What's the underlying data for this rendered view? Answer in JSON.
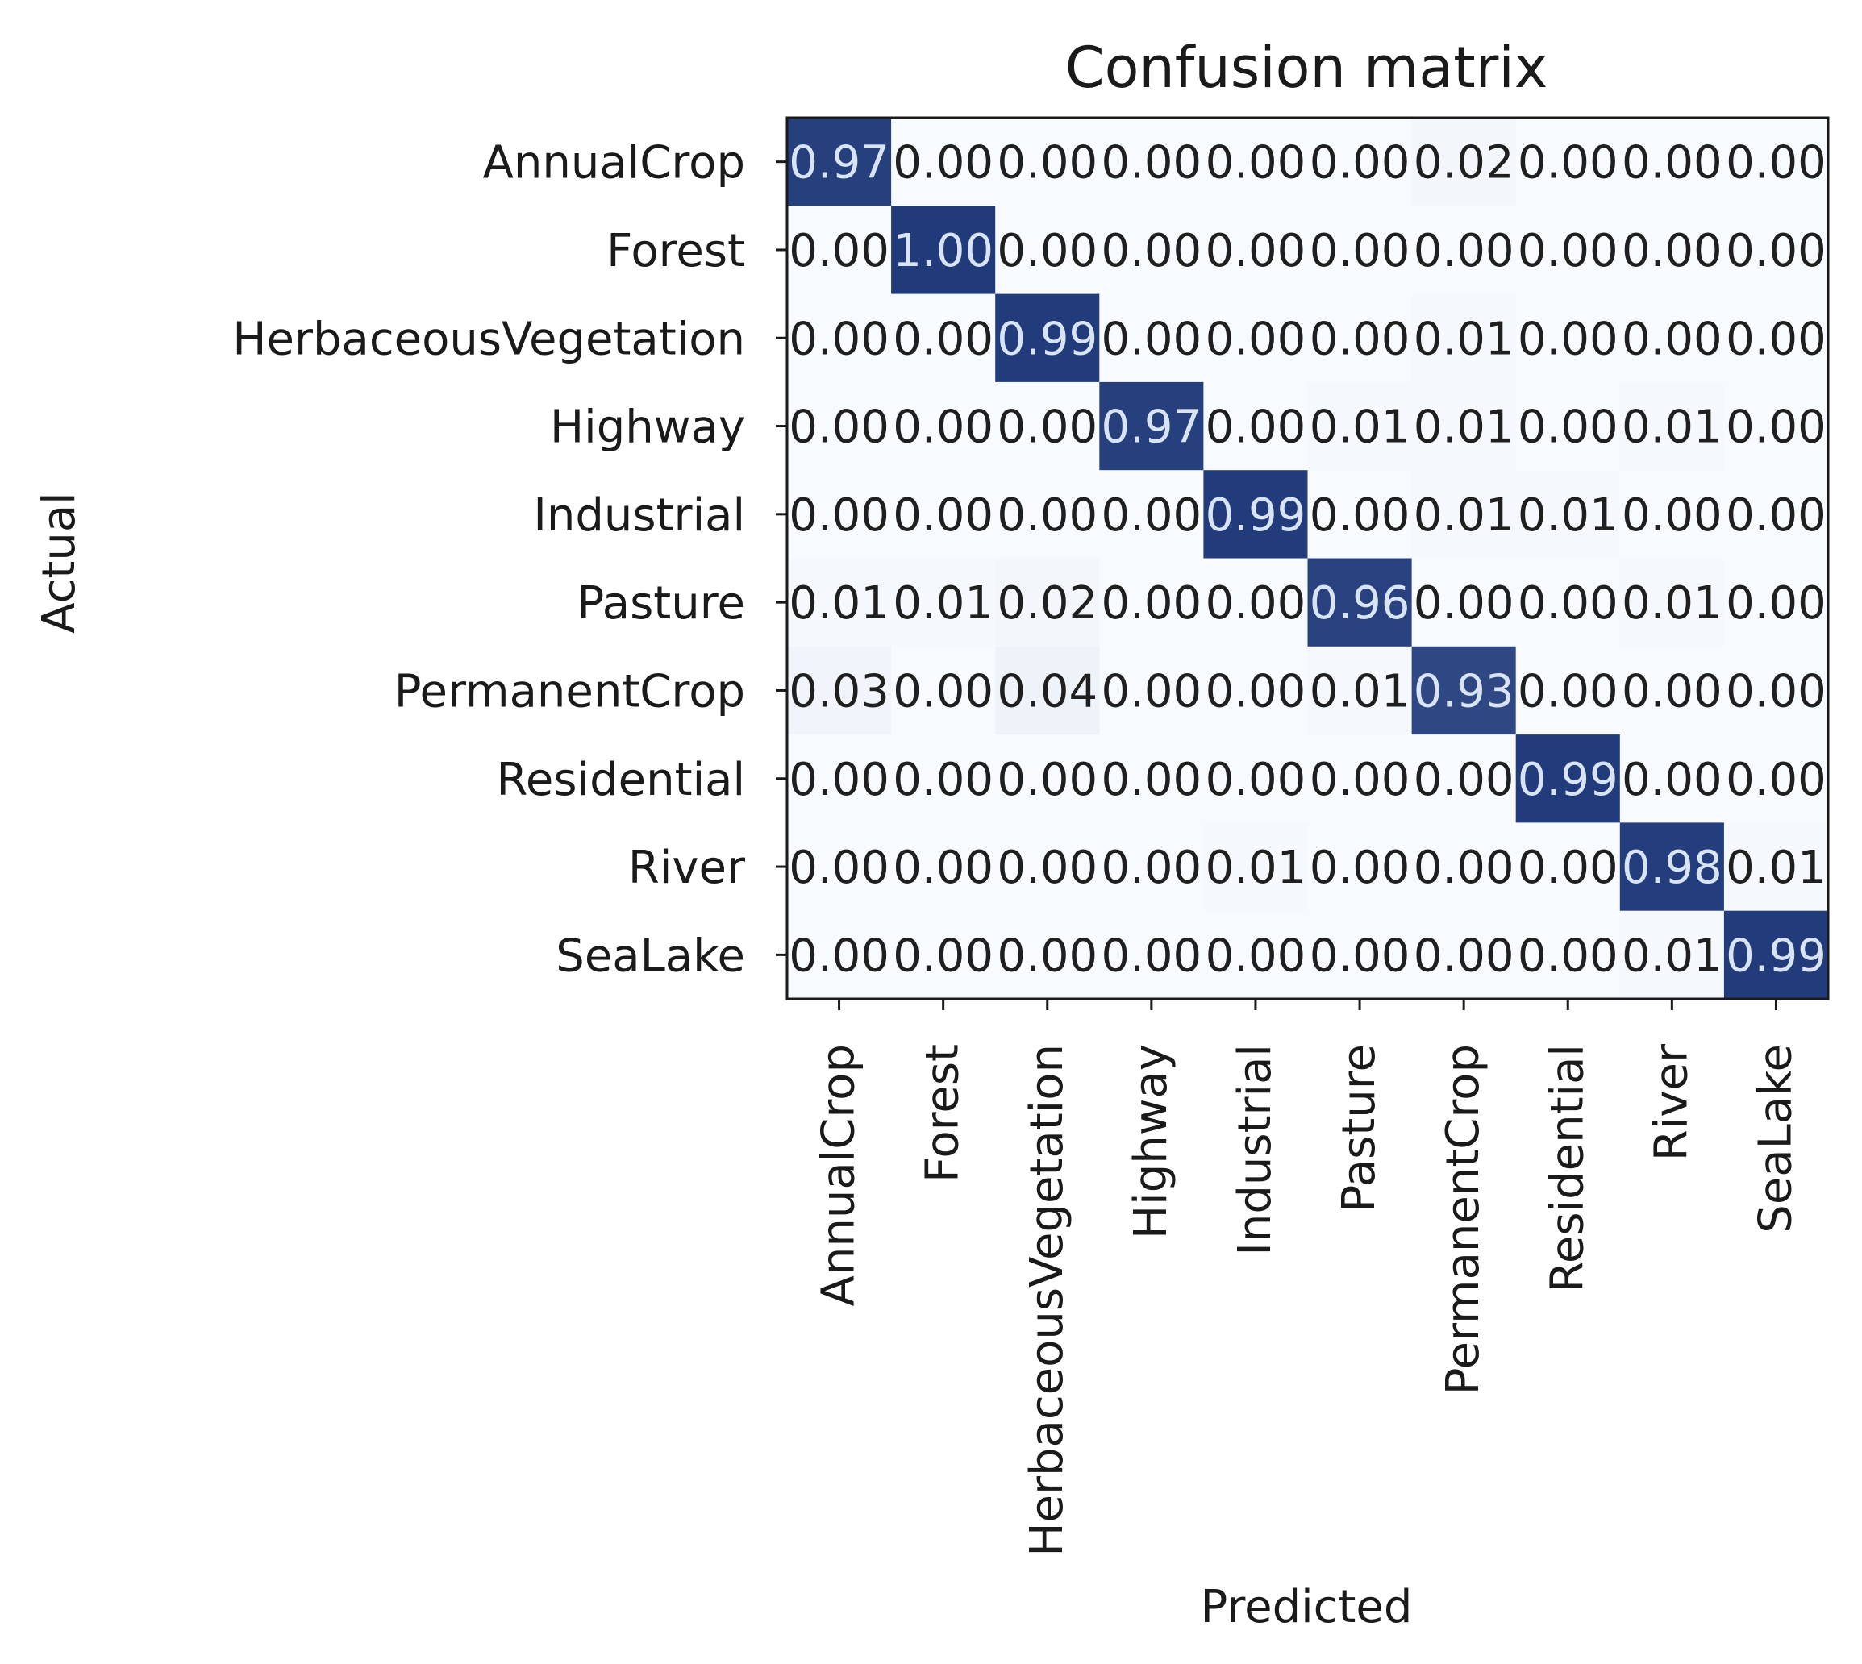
{
  "chart_data": {
    "type": "heatmap",
    "title": "Confusion matrix",
    "xlabel": "Predicted",
    "ylabel": "Actual",
    "row_labels": [
      "AnnualCrop",
      "Forest",
      "HerbaceousVegetation",
      "Highway",
      "Industrial",
      "Pasture",
      "PermanentCrop",
      "Residential",
      "River",
      "SeaLake"
    ],
    "col_labels": [
      "AnnualCrop",
      "Forest",
      "HerbaceousVegetation",
      "Highway",
      "Industrial",
      "Pasture",
      "PermanentCrop",
      "Residential",
      "River",
      "SeaLake"
    ],
    "matrix": [
      [
        0.97,
        0.0,
        0.0,
        0.0,
        0.0,
        0.0,
        0.02,
        0.0,
        0.0,
        0.0
      ],
      [
        0.0,
        1.0,
        0.0,
        0.0,
        0.0,
        0.0,
        0.0,
        0.0,
        0.0,
        0.0
      ],
      [
        0.0,
        0.0,
        0.99,
        0.0,
        0.0,
        0.0,
        0.01,
        0.0,
        0.0,
        0.0
      ],
      [
        0.0,
        0.0,
        0.0,
        0.97,
        0.0,
        0.01,
        0.01,
        0.0,
        0.01,
        0.0
      ],
      [
        0.0,
        0.0,
        0.0,
        0.0,
        0.99,
        0.0,
        0.01,
        0.01,
        0.0,
        0.0
      ],
      [
        0.01,
        0.01,
        0.02,
        0.0,
        0.0,
        0.96,
        0.0,
        0.0,
        0.01,
        0.0
      ],
      [
        0.03,
        0.0,
        0.04,
        0.0,
        0.0,
        0.01,
        0.93,
        0.0,
        0.0,
        0.0
      ],
      [
        0.0,
        0.0,
        0.0,
        0.0,
        0.0,
        0.0,
        0.0,
        0.99,
        0.0,
        0.0
      ],
      [
        0.0,
        0.0,
        0.0,
        0.0,
        0.01,
        0.0,
        0.0,
        0.0,
        0.98,
        0.01
      ],
      [
        0.0,
        0.0,
        0.0,
        0.0,
        0.0,
        0.0,
        0.0,
        0.0,
        0.01,
        0.99
      ]
    ],
    "value_format": "0.00",
    "colormap": "Blues",
    "color_low": "#f7fbff",
    "color_high": "#203a7a",
    "text_color_dark": "#1f1f1f",
    "text_color_light": "#d8e4f4",
    "grid": false
  }
}
